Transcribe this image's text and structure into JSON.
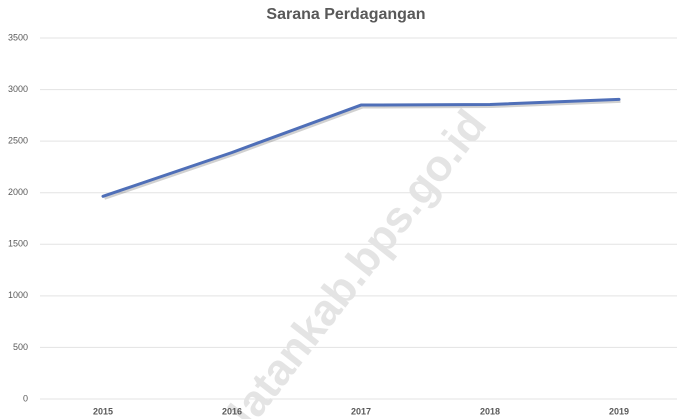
{
  "chart_data": {
    "type": "line",
    "title": "Sarana Perdagangan",
    "categories": [
      "2015",
      "2016",
      "2017",
      "2018",
      "2019"
    ],
    "series": [
      {
        "name": "Sarana Perdagangan",
        "color": "#4f6fb8",
        "values": [
          1965,
          2390,
          2850,
          2855,
          2905
        ]
      }
    ],
    "ylim": [
      0,
      3500
    ],
    "yticks": [
      0,
      500,
      1000,
      1500,
      2000,
      2500,
      3000,
      3500
    ],
    "grid": true,
    "watermark": "latankab.bps.go.id"
  }
}
